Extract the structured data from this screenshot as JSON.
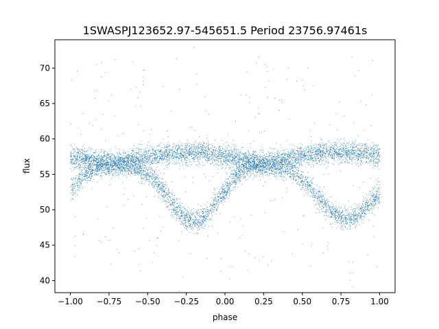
{
  "chart_data": {
    "type": "scatter",
    "title": "1SWASPJ123652.97-545651.5 Period 23756.97461s",
    "xlabel": "phase",
    "ylabel": "flux",
    "xlim": [
      -1.1,
      1.1
    ],
    "ylim": [
      38.3,
      74.0
    ],
    "xticks": [
      -1.0,
      -0.75,
      -0.5,
      -0.25,
      0.0,
      0.25,
      0.5,
      0.75,
      1.0
    ],
    "xtick_labels": [
      "−1.00",
      "−0.75",
      "−0.50",
      "−0.25",
      "0.00",
      "0.25",
      "0.50",
      "0.75",
      "1.00"
    ],
    "yticks": [
      40,
      45,
      50,
      55,
      60,
      65,
      70
    ],
    "ytick_labels": [
      "40",
      "45",
      "50",
      "55",
      "60",
      "65",
      "70"
    ],
    "grid": false,
    "marker_color": "#1f77b4",
    "series": [
      {
        "band": "upper",
        "x": [
          -1.0,
          -0.9,
          -0.8,
          -0.7,
          -0.6,
          -0.5,
          -0.4,
          -0.3,
          -0.2,
          -0.1,
          0.0,
          0.1,
          0.2,
          0.3,
          0.4,
          0.5,
          0.6,
          0.7,
          0.8,
          0.9,
          1.0
        ],
        "values": [
          57.6,
          57.2,
          56.8,
          56.7,
          57.1,
          57.5,
          57.8,
          58.0,
          58.1,
          58.0,
          57.6,
          57.1,
          56.7,
          56.8,
          57.2,
          57.6,
          57.9,
          58.1,
          58.1,
          58.0,
          57.6
        ]
      },
      {
        "band": "lower",
        "x": [
          -1.0,
          -0.95,
          -0.9,
          -0.85,
          -0.8,
          -0.7,
          -0.6,
          -0.55,
          -0.5,
          -0.45,
          -0.4,
          -0.35,
          -0.3,
          -0.25,
          -0.2,
          -0.15,
          -0.1,
          -0.05,
          0.0,
          0.05,
          0.1,
          0.15,
          0.2,
          0.3,
          0.4,
          0.45,
          0.5,
          0.55,
          0.6,
          0.65,
          0.7,
          0.75,
          0.8,
          0.85,
          0.9,
          0.95,
          1.0
        ],
        "values": [
          52.9,
          54.2,
          55.3,
          55.9,
          56.2,
          56.4,
          56.1,
          55.6,
          55.0,
          54.0,
          52.8,
          51.2,
          49.8,
          48.7,
          48.3,
          48.7,
          49.8,
          51.2,
          52.8,
          54.2,
          55.3,
          56.0,
          56.3,
          56.2,
          55.8,
          55.2,
          54.3,
          53.2,
          51.9,
          50.6,
          49.6,
          49.0,
          48.8,
          49.2,
          50.2,
          51.3,
          52.3
        ]
      }
    ]
  }
}
